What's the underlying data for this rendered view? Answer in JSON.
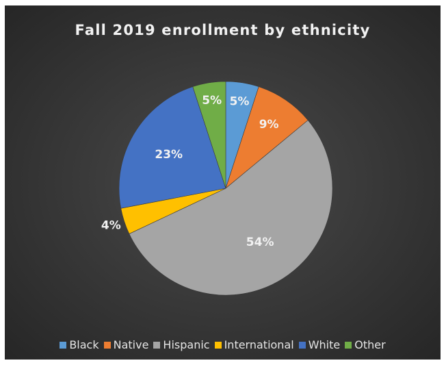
{
  "chart_data": {
    "type": "pie",
    "title": "Fall 2019 enrollment by ethnicity",
    "categories": [
      "Black",
      "Native",
      "Hispanic",
      "International",
      "White",
      "Other"
    ],
    "values": [
      5,
      9,
      54,
      4,
      23,
      5
    ],
    "labels": [
      "5%",
      "9%",
      "54%",
      "4%",
      "23%",
      "5%"
    ],
    "colors": [
      "#5b9bd5",
      "#ed7d31",
      "#a5a5a5",
      "#ffc000",
      "#4472c4",
      "#70ad47"
    ],
    "legend_position": "bottom",
    "background": "#3a3a3a"
  }
}
